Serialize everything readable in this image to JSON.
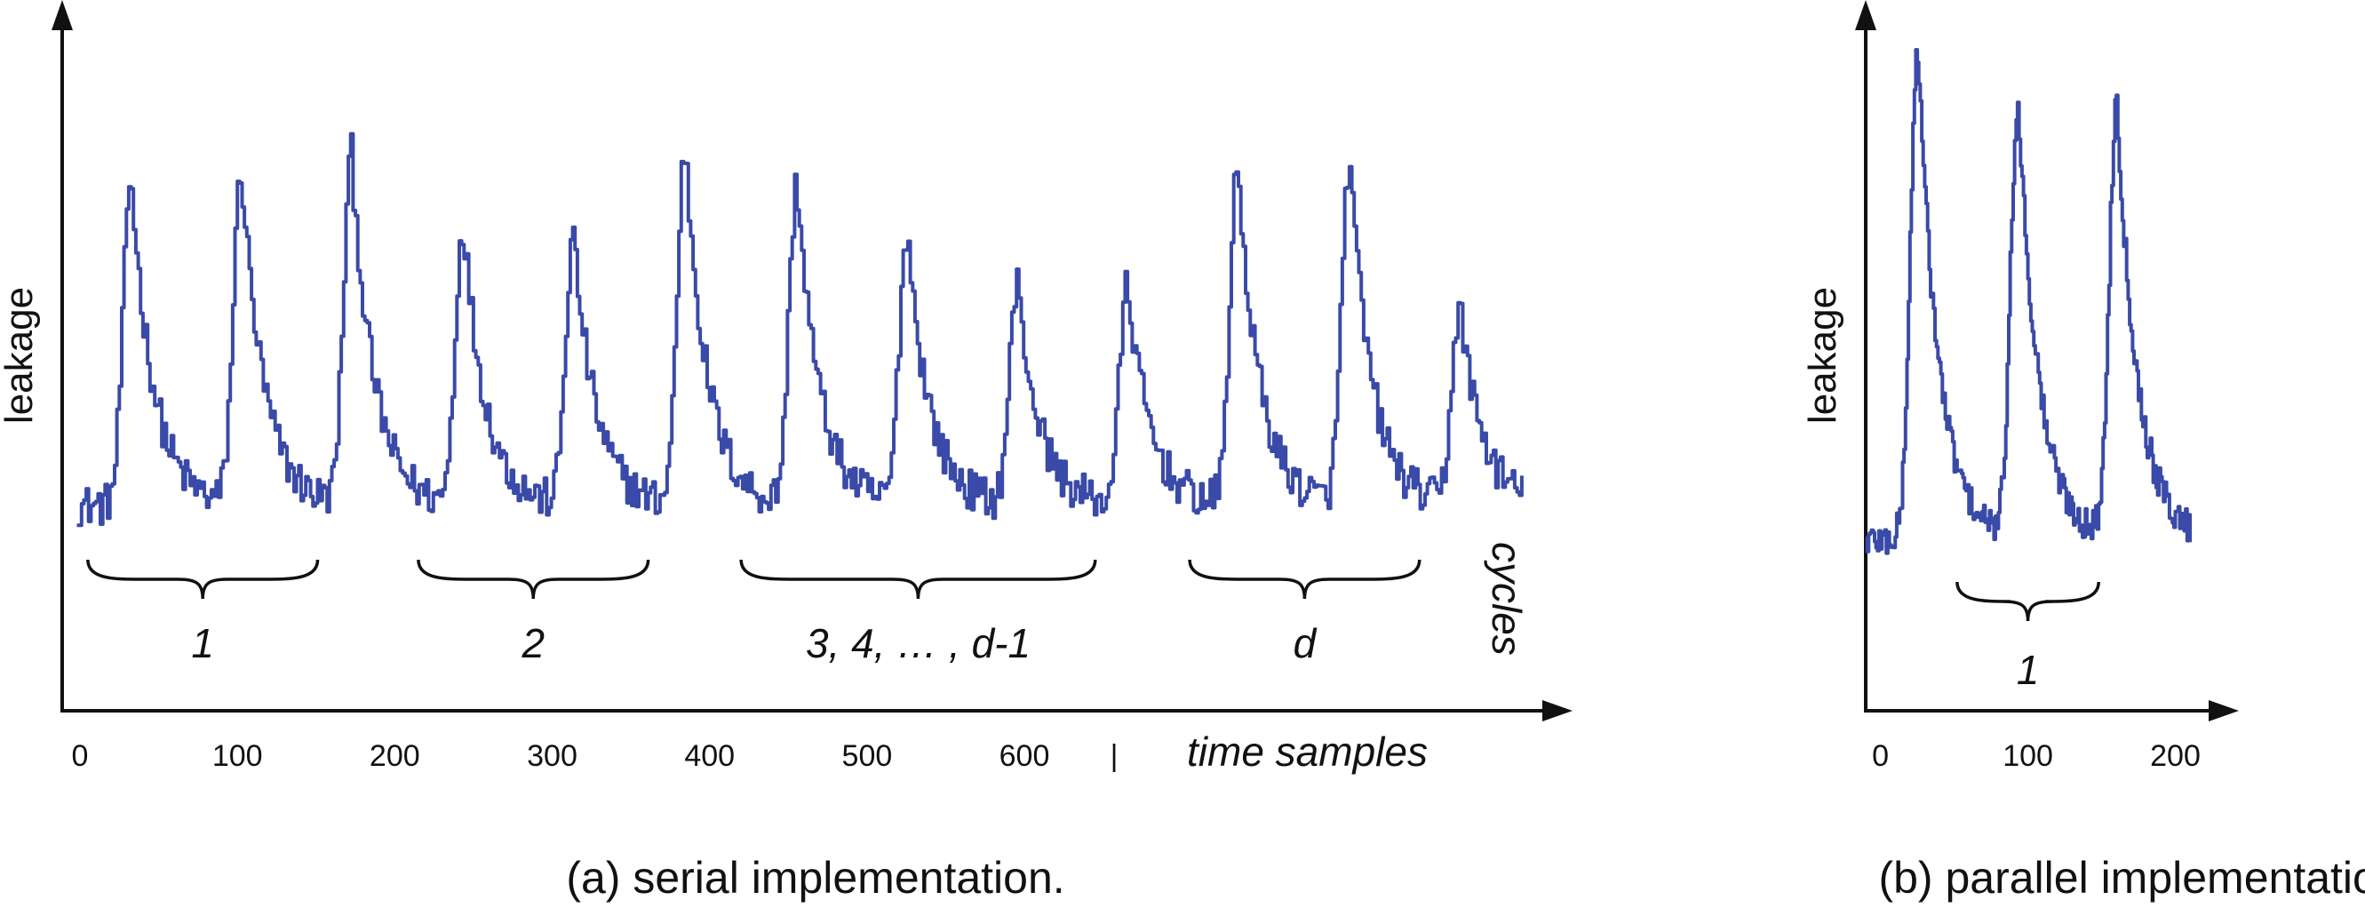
{
  "chart_data": [
    {
      "type": "line",
      "panel": "a",
      "caption": "(a) serial implementation.",
      "ylabel": "leakage",
      "xlabel": "time samples",
      "cycles_label": "cycles",
      "separator_label": "|",
      "xticks": [
        {
          "value": 0,
          "label": "0"
        },
        {
          "value": 100,
          "label": "100"
        },
        {
          "value": 200,
          "label": "200"
        },
        {
          "value": 300,
          "label": "300"
        },
        {
          "value": 400,
          "label": "400"
        },
        {
          "value": 500,
          "label": "500"
        },
        {
          "value": 600,
          "label": "600"
        }
      ],
      "xlim": [
        0,
        920
      ],
      "ylim": [
        0,
        1
      ],
      "baseline": 0.3,
      "noise": 0.03,
      "peaks": [
        {
          "x": 32,
          "height": 0.78
        },
        {
          "x": 102,
          "height": 0.79
        },
        {
          "x": 172,
          "height": 0.81
        },
        {
          "x": 243,
          "height": 0.71
        },
        {
          "x": 313,
          "height": 0.69
        },
        {
          "x": 384,
          "height": 0.82
        },
        {
          "x": 455,
          "height": 0.77
        },
        {
          "x": 525,
          "height": 0.7
        },
        {
          "x": 595,
          "height": 0.62
        },
        {
          "x": 665,
          "height": 0.62
        },
        {
          "x": 735,
          "height": 0.79
        },
        {
          "x": 806,
          "height": 0.8
        },
        {
          "x": 876,
          "height": 0.59
        }
      ],
      "groups": [
        {
          "label": "1",
          "from": 5,
          "to": 151
        },
        {
          "label": "2",
          "from": 215,
          "to": 361
        },
        {
          "label": "3, 4, … , d-1",
          "from": 420,
          "to": 645
        },
        {
          "label": "d",
          "from": 705,
          "to": 851
        }
      ]
    },
    {
      "type": "line",
      "panel": "b",
      "caption": "(b) parallel implementation.",
      "ylabel": "leakage",
      "xticks": [
        {
          "value": 0,
          "label": "0"
        },
        {
          "value": 100,
          "label": "100"
        },
        {
          "value": 200,
          "label": "200"
        }
      ],
      "xlim": [
        -10,
        225
      ],
      "ylim": [
        0,
        1
      ],
      "baseline": 0.25,
      "noise": 0.025,
      "peaks": [
        {
          "x": 25,
          "height": 0.97
        },
        {
          "x": 93,
          "height": 0.89
        },
        {
          "x": 160,
          "height": 0.89
        }
      ],
      "groups": [
        {
          "label": "1",
          "from": 52,
          "to": 148
        }
      ]
    }
  ]
}
